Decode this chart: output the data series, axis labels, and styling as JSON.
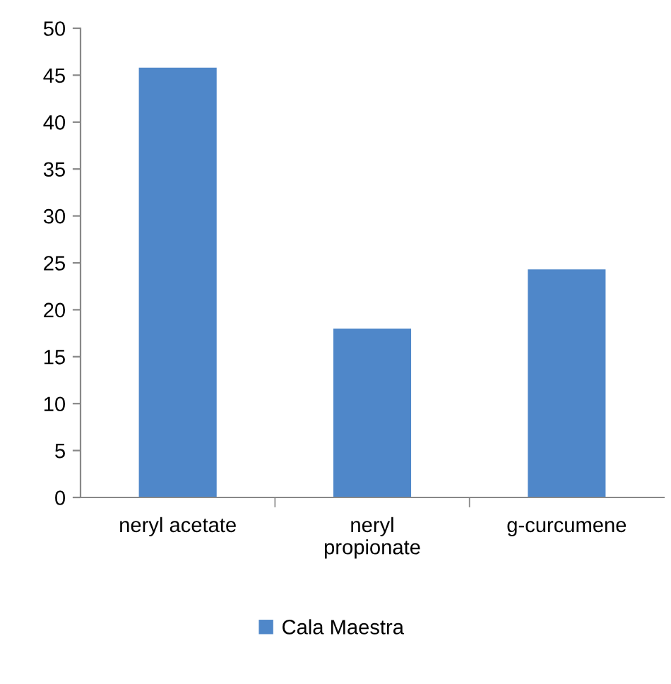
{
  "chart_data": {
    "type": "bar",
    "categories": [
      "neryl acetate",
      "neryl\npropionate",
      "g-curcumene"
    ],
    "series": [
      {
        "name": "Cala Maestra",
        "color": "#4f87c9",
        "values": [
          45.8,
          18,
          24.3
        ]
      }
    ],
    "ylim": [
      0,
      50
    ],
    "yticks": [
      0,
      5,
      10,
      15,
      20,
      25,
      30,
      35,
      40,
      45,
      50
    ],
    "grid": false,
    "legend": "bottom"
  }
}
